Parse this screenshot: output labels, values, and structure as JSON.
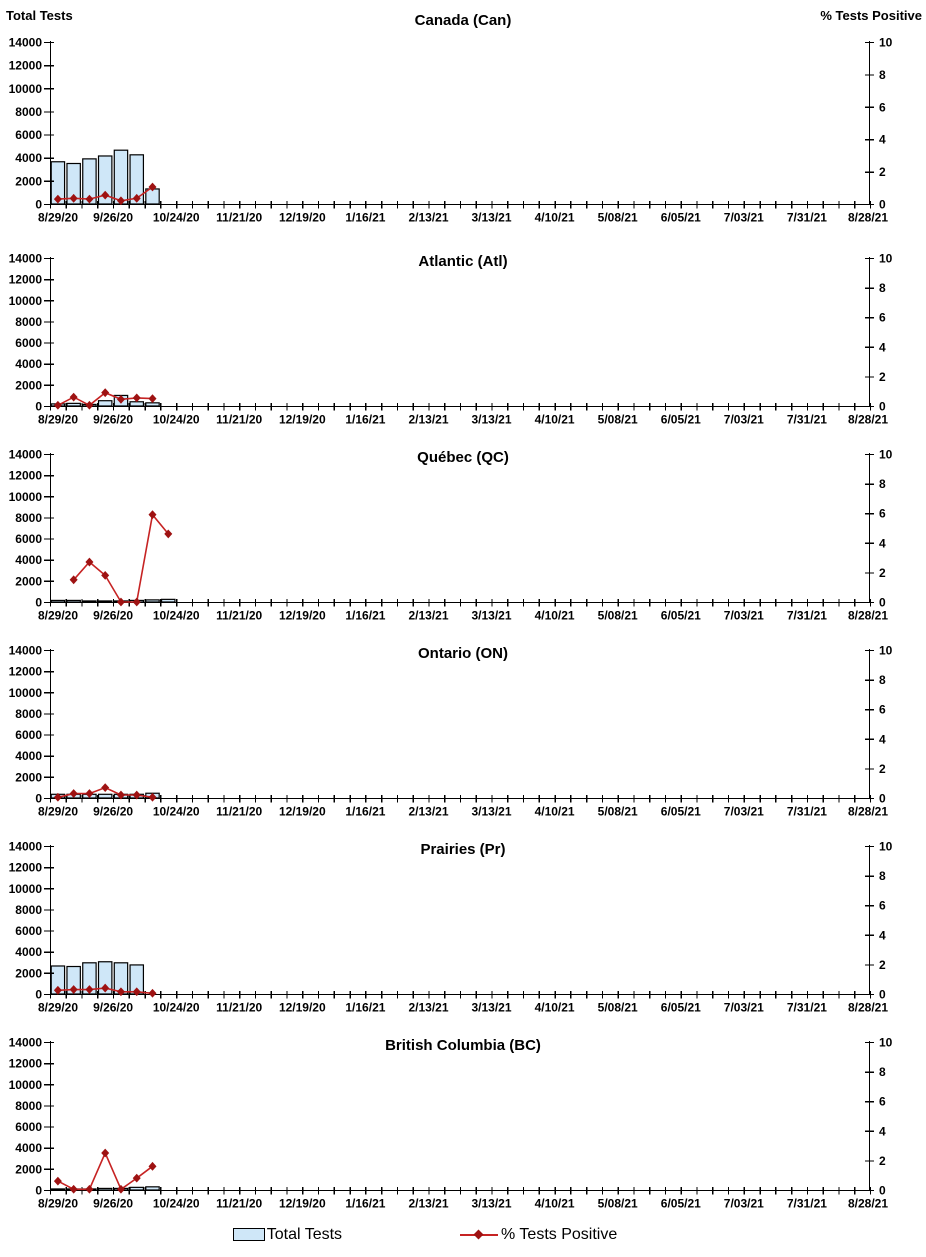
{
  "header": {
    "left_axis_title": "Total Tests",
    "right_axis_title": "% Tests Positive"
  },
  "legend": {
    "position": "bottom-center",
    "items": [
      {
        "label": "Total Tests",
        "swatch": "bar"
      },
      {
        "label": "% Tests Positive",
        "swatch": "line-diamond"
      }
    ]
  },
  "colors": {
    "bar_fill": "#cfe7f8",
    "bar_stroke": "#000000",
    "line": "#c62323",
    "marker": "#9e1212",
    "axis": "#000000",
    "text": "#000000"
  },
  "axes": {
    "y_left": {
      "title": "Total Tests",
      "min": 0,
      "max": 14000,
      "step": 2000,
      "tick_labels": [
        "0",
        "2000",
        "4000",
        "6000",
        "8000",
        "10000",
        "12000",
        "14000"
      ]
    },
    "y_right": {
      "title": "% Tests Positive",
      "min": 0,
      "max": 10,
      "step": 2,
      "tick_labels": [
        "0",
        "2",
        "4",
        "6",
        "8",
        "10"
      ]
    },
    "x": {
      "total_weeks": 52,
      "label_every_weeks": 4,
      "grid": false,
      "tick_labels": [
        "8/29/20",
        "9/26/20",
        "10/24/20",
        "11/21/20",
        "12/19/20",
        "1/16/21",
        "2/13/21",
        "3/13/21",
        "4/10/21",
        "5/08/21",
        "6/05/21",
        "7/03/21",
        "7/31/21",
        "8/28/21"
      ]
    }
  },
  "week_dates": [
    "8/29/20",
    "9/05/20",
    "9/12/20",
    "9/19/20",
    "9/26/20",
    "10/03/20",
    "10/10/20",
    "10/17/20"
  ],
  "chart_data": [
    {
      "title": "Canada (Can)",
      "type": "bar",
      "ylim_left": [
        0,
        14000
      ],
      "ylim_right": [
        0,
        10
      ],
      "series": [
        {
          "name": "Total Tests",
          "type": "bar",
          "axis": "left",
          "start_week": 0,
          "values": [
            3650,
            3500,
            3900,
            4150,
            4650,
            4250,
            1300
          ]
        },
        {
          "name": "% Tests Positive",
          "type": "line",
          "axis": "right",
          "start_week": 0,
          "values": [
            0.3,
            0.35,
            0.3,
            0.55,
            0.2,
            0.35,
            1.05
          ]
        }
      ]
    },
    {
      "title": "Atlantic (Atl)",
      "type": "bar",
      "ylim_left": [
        0,
        14000
      ],
      "ylim_right": [
        0,
        10
      ],
      "series": [
        {
          "name": "Total Tests",
          "type": "bar",
          "axis": "left",
          "start_week": 0,
          "values": [
            200,
            250,
            150,
            500,
            1000,
            400,
            300
          ]
        },
        {
          "name": "% Tests Positive",
          "type": "line",
          "axis": "right",
          "start_week": 0,
          "values": [
            0.05,
            0.6,
            0.05,
            0.9,
            0.45,
            0.55,
            0.5
          ]
        }
      ]
    },
    {
      "title": "Québec (QC)",
      "type": "bar",
      "ylim_left": [
        0,
        14000
      ],
      "ylim_right": [
        0,
        10
      ],
      "series": [
        {
          "name": "Total Tests",
          "type": "bar",
          "axis": "left",
          "start_week": 0,
          "values": [
            150,
            150,
            100,
            100,
            100,
            150,
            200,
            250
          ]
        },
        {
          "name": "% Tests Positive",
          "type": "line",
          "axis": "right",
          "start_week": 1,
          "values": [
            1.5,
            2.7,
            1.8,
            0,
            0,
            5.9,
            4.6
          ]
        }
      ]
    },
    {
      "title": "Ontario (ON)",
      "type": "bar",
      "ylim_left": [
        0,
        14000
      ],
      "ylim_right": [
        0,
        10
      ],
      "series": [
        {
          "name": "Total Tests",
          "type": "bar",
          "axis": "left",
          "start_week": 0,
          "values": [
            350,
            350,
            350,
            350,
            350,
            350,
            450
          ]
        },
        {
          "name": "% Tests Positive",
          "type": "line",
          "axis": "right",
          "start_week": 0,
          "values": [
            0.05,
            0.3,
            0.3,
            0.7,
            0.2,
            0.2,
            0.05
          ]
        }
      ]
    },
    {
      "title": "Prairies (Pr)",
      "type": "bar",
      "ylim_left": [
        0,
        14000
      ],
      "ylim_right": [
        0,
        10
      ],
      "series": [
        {
          "name": "Total Tests",
          "type": "bar",
          "axis": "left",
          "start_week": 0,
          "values": [
            2650,
            2600,
            2950,
            3050,
            2950,
            2750
          ]
        },
        {
          "name": "% Tests Positive",
          "type": "line",
          "axis": "right",
          "start_week": 0,
          "values": [
            0.25,
            0.3,
            0.3,
            0.4,
            0.15,
            0.15,
            0.05
          ]
        }
      ]
    },
    {
      "title": "British Columbia (BC)",
      "type": "bar",
      "ylim_left": [
        0,
        14000
      ],
      "ylim_right": [
        0,
        10
      ],
      "series": [
        {
          "name": "Total Tests",
          "type": "bar",
          "axis": "left",
          "start_week": 0,
          "values": [
            100,
            100,
            100,
            150,
            150,
            250,
            300
          ]
        },
        {
          "name": "% Tests Positive",
          "type": "line",
          "axis": "right",
          "start_week": 0,
          "values": [
            0.6,
            0.05,
            0.05,
            2.5,
            0.05,
            0.8,
            1.6
          ]
        }
      ]
    }
  ]
}
